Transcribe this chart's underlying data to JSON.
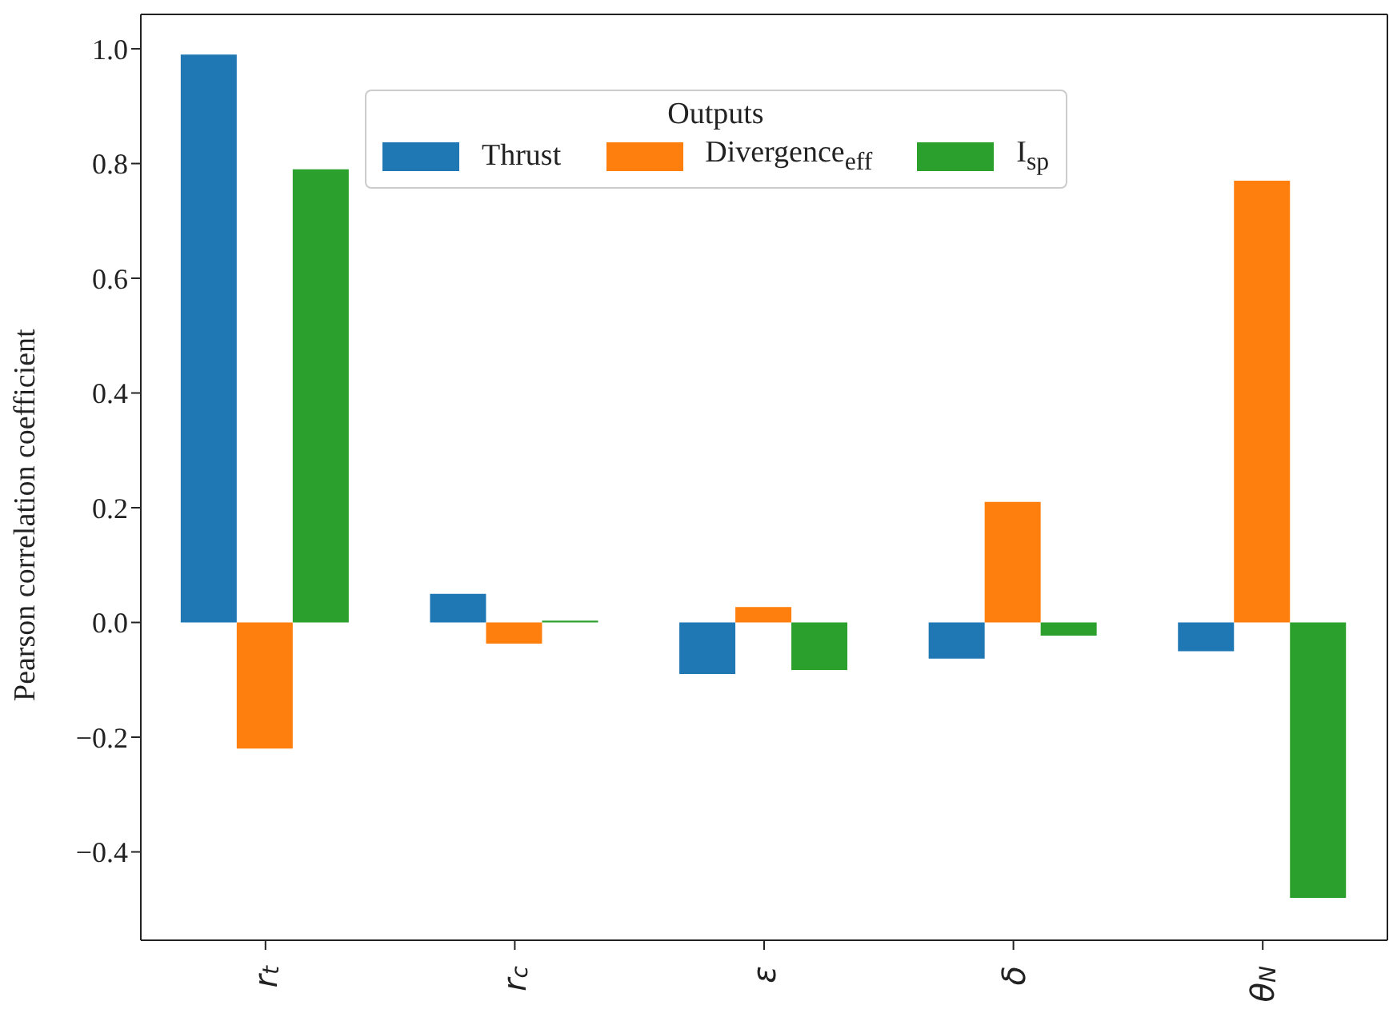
{
  "chart_data": {
    "type": "bar",
    "ylabel": "Pearson correlation coefficient",
    "legend_title": "Outputs",
    "legend": "top",
    "categories": [
      "r$_{t}$",
      "r$_{c}$",
      "ε",
      "δ",
      "θ$_{N}$"
    ],
    "series": [
      {
        "name": "Thrust",
        "color": "#1f77b4",
        "values": [
          0.99,
          0.05,
          -0.09,
          -0.063,
          -0.05
        ]
      },
      {
        "name": "Divergence$_{eff}$",
        "color": "#ff7f0e",
        "values": [
          -0.22,
          -0.037,
          0.027,
          0.21,
          0.77
        ]
      },
      {
        "name": "I$_{sp}$",
        "color": "#2ca02c",
        "values": [
          0.79,
          0.003,
          -0.083,
          -0.023,
          -0.48
        ]
      }
    ],
    "ylim": [
      -0.554,
      1.06
    ],
    "yticks": [
      {
        "value": -0.4,
        "label": "−0.4"
      },
      {
        "value": -0.2,
        "label": "−0.2"
      },
      {
        "value": 0,
        "label": "0.0"
      },
      {
        "value": 0.2,
        "label": "0.2"
      },
      {
        "value": 0.4,
        "label": "0.4"
      },
      {
        "value": 0.6,
        "label": "0.6"
      },
      {
        "value": 0.8,
        "label": "0.8"
      },
      {
        "value": 1.0,
        "label": "1.0"
      }
    ]
  }
}
